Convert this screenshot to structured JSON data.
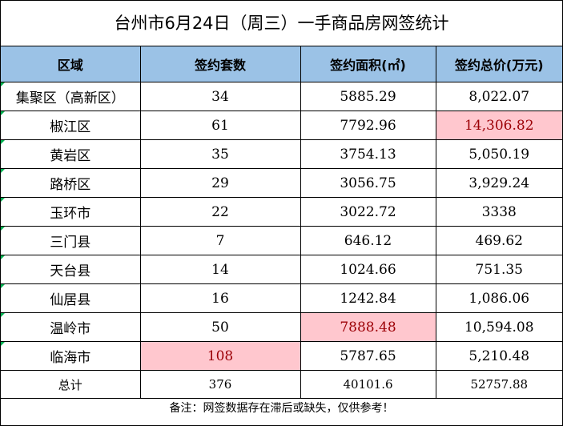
{
  "title": "台州市6月24日（周三）一手商品房网签统计",
  "columns": [
    "区域",
    "签约套数",
    "签约面积(㎡)",
    "签约总价(万元)"
  ],
  "rows": [
    {
      "region": "集聚区（高新区）",
      "units": "34",
      "area": "5885.29",
      "price": "8,022.07"
    },
    {
      "region": "椒江区",
      "units": "61",
      "area": "7792.96",
      "price": "14,306.82"
    },
    {
      "region": "黄岩区",
      "units": "35",
      "area": "3754.13",
      "price": "5,050.19"
    },
    {
      "region": "路桥区",
      "units": "29",
      "area": "3056.75",
      "price": "3,929.24"
    },
    {
      "region": "玉环市",
      "units": "22",
      "area": "3022.72",
      "price": "3338"
    },
    {
      "region": "三门县",
      "units": "7",
      "area": "646.12",
      "price": "469.62"
    },
    {
      "region": "天台县",
      "units": "14",
      "area": "1024.66",
      "price": "751.35"
    },
    {
      "region": "仙居县",
      "units": "16",
      "area": "1242.84",
      "price": "1,086.06"
    },
    {
      "region": "温岭市",
      "units": "50",
      "area": "7888.48",
      "price": "10,594.08"
    },
    {
      "region": "临海市",
      "units": "108",
      "area": "5787.65",
      "price": "5,210.48"
    }
  ],
  "total": {
    "region": "总计",
    "units": "376",
    "area": "40101.6",
    "price": "52757.88"
  },
  "highlights": {
    "max_price_region": "椒江区",
    "max_area_region": "温岭市",
    "max_units_region": "临海市",
    "highlight_bg": "#ffc7ce",
    "highlight_text": "#9c0006",
    "header_bg": "#9bc2e6"
  },
  "footer_note": "备注：网签数据存在滞后或缺失，仅供参考！"
}
